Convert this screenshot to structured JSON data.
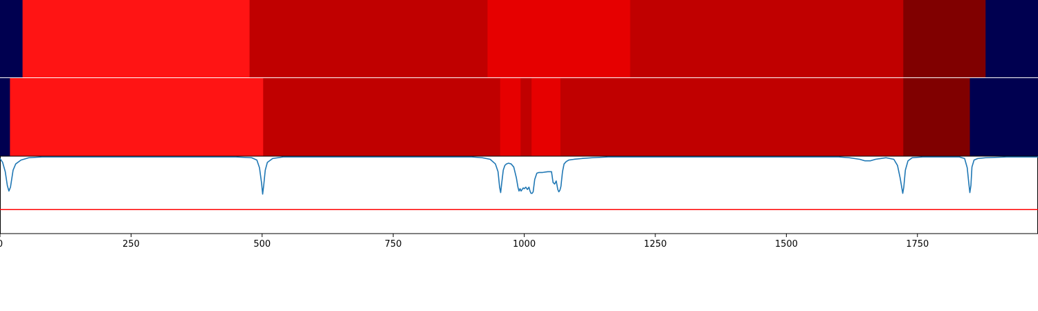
{
  "chart_data": {
    "type": "segmentation-strip",
    "title": "",
    "xlabel": "",
    "ylabel": "",
    "xlim": [
      0,
      1980
    ],
    "x_ticks": [
      0,
      250,
      500,
      750,
      1000,
      1250,
      1500,
      1750
    ],
    "x_tick_labels": [
      "0",
      "250",
      "500",
      "750",
      "1000",
      "1250",
      "1500",
      "1750"
    ],
    "grid": false,
    "legend": "none",
    "colors": {
      "background_class": "#000050",
      "class_a": "#ff1414",
      "class_b": "#c00000",
      "class_c": "#e60000",
      "class_d": "#800000",
      "signal_line": "#1f77b4",
      "threshold_line": "#ff0000"
    },
    "strips": [
      {
        "name": "",
        "segments": [
          {
            "start": 0,
            "end": 43,
            "color": "#000050"
          },
          {
            "start": 43,
            "end": 476,
            "color": "#ff1414"
          },
          {
            "start": 476,
            "end": 930,
            "color": "#c00000"
          },
          {
            "start": 930,
            "end": 1202,
            "color": "#e60000"
          },
          {
            "start": 1202,
            "end": 1723,
            "color": "#c00000"
          },
          {
            "start": 1723,
            "end": 1880,
            "color": "#800000"
          },
          {
            "start": 1880,
            "end": 1980,
            "color": "#000050"
          }
        ]
      },
      {
        "name": "",
        "segments": [
          {
            "start": 0,
            "end": 19,
            "color": "#000050"
          },
          {
            "start": 19,
            "end": 502,
            "color": "#ff1414"
          },
          {
            "start": 502,
            "end": 954,
            "color": "#c00000"
          },
          {
            "start": 954,
            "end": 993,
            "color": "#e60000"
          },
          {
            "start": 993,
            "end": 1014,
            "color": "#c00000"
          },
          {
            "start": 1014,
            "end": 1069,
            "color": "#e60000"
          },
          {
            "start": 1069,
            "end": 1723,
            "color": "#c00000"
          },
          {
            "start": 1723,
            "end": 1850,
            "color": "#800000"
          },
          {
            "start": 1850,
            "end": 1980,
            "color": "#000050"
          }
        ]
      }
    ],
    "signal": {
      "name": "",
      "ylim": [
        0,
        1
      ],
      "threshold": 0.31,
      "x": [
        0,
        5,
        10,
        14,
        17,
        20,
        25,
        30,
        40,
        55,
        80,
        200,
        300,
        400,
        450,
        480,
        490,
        495,
        499,
        501,
        503,
        506,
        510,
        520,
        540,
        560,
        600,
        700,
        800,
        900,
        920,
        935,
        945,
        950,
        953,
        955,
        957,
        960,
        963,
        966,
        970,
        975,
        980,
        985,
        988,
        990,
        992,
        994,
        996,
        998,
        1000,
        1003,
        1006,
        1009,
        1011,
        1013,
        1015,
        1017,
        1020,
        1024,
        1028,
        1035,
        1045,
        1052,
        1055,
        1058,
        1061,
        1064,
        1066,
        1068,
        1070,
        1073,
        1076,
        1080,
        1085,
        1095,
        1110,
        1130,
        1160,
        1200,
        1300,
        1400,
        1500,
        1600,
        1620,
        1640,
        1650,
        1660,
        1670,
        1690,
        1705,
        1712,
        1717,
        1720,
        1722,
        1724,
        1727,
        1732,
        1740,
        1760,
        1800,
        1830,
        1840,
        1845,
        1848,
        1850,
        1852,
        1854,
        1858,
        1865,
        1880,
        1920,
        1980
      ],
      "y": [
        0.97,
        0.92,
        0.8,
        0.62,
        0.55,
        0.6,
        0.82,
        0.9,
        0.95,
        0.98,
        0.99,
        0.99,
        0.99,
        0.99,
        0.99,
        0.98,
        0.95,
        0.85,
        0.65,
        0.51,
        0.62,
        0.82,
        0.92,
        0.97,
        0.99,
        0.99,
        0.99,
        0.99,
        0.99,
        0.99,
        0.98,
        0.96,
        0.9,
        0.8,
        0.6,
        0.53,
        0.65,
        0.82,
        0.88,
        0.9,
        0.91,
        0.9,
        0.86,
        0.72,
        0.6,
        0.55,
        0.58,
        0.55,
        0.57,
        0.59,
        0.58,
        0.6,
        0.57,
        0.6,
        0.55,
        0.52,
        0.52,
        0.54,
        0.7,
        0.78,
        0.79,
        0.79,
        0.8,
        0.8,
        0.66,
        0.64,
        0.68,
        0.57,
        0.54,
        0.56,
        0.61,
        0.8,
        0.9,
        0.93,
        0.95,
        0.96,
        0.97,
        0.98,
        0.99,
        0.99,
        0.99,
        0.99,
        0.99,
        0.99,
        0.98,
        0.96,
        0.94,
        0.94,
        0.96,
        0.98,
        0.96,
        0.88,
        0.72,
        0.6,
        0.52,
        0.6,
        0.82,
        0.94,
        0.98,
        0.99,
        0.99,
        0.99,
        0.97,
        0.85,
        0.65,
        0.53,
        0.62,
        0.86,
        0.95,
        0.97,
        0.98,
        0.99,
        0.99
      ]
    }
  }
}
